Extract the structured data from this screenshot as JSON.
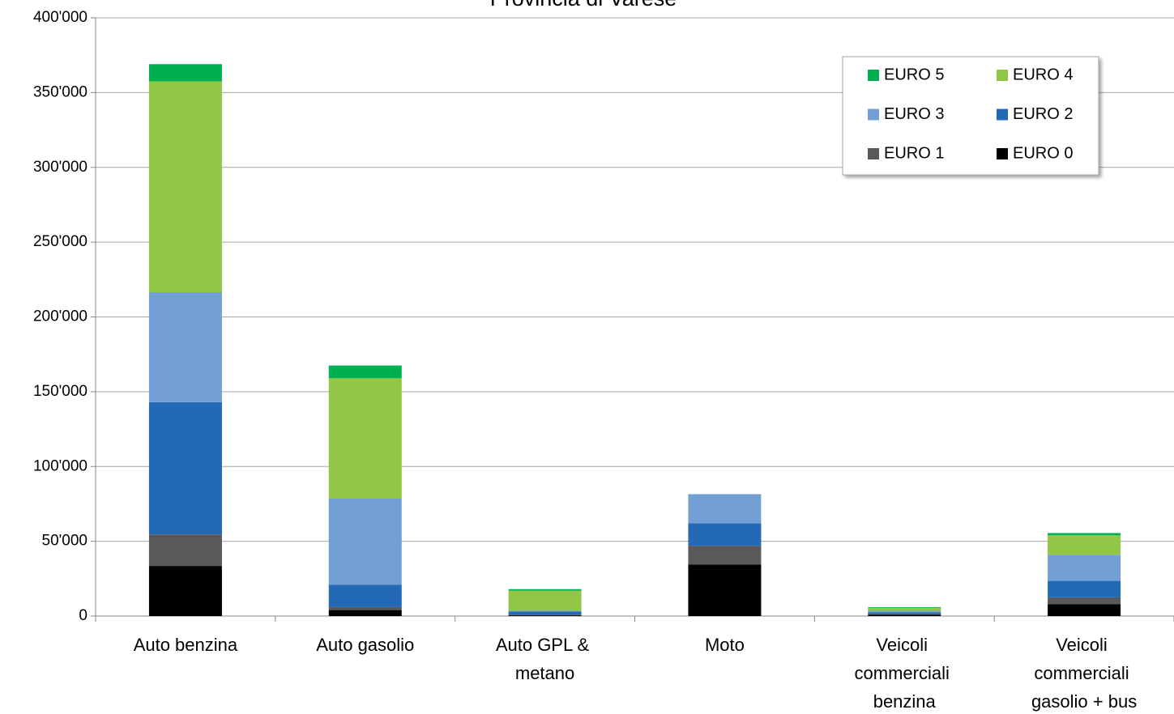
{
  "chart_data": {
    "type": "stacked_bar",
    "title": "Provincia di Varese",
    "categories": [
      "Auto benzina",
      "Auto gasolio",
      "Auto GPL & metano",
      "Moto",
      "Veicoli commerciali benzina",
      "Veicoli commerciali gasolio + bus"
    ],
    "series": [
      {
        "name": "EURO 0",
        "color": "#000000",
        "values": [
          33500,
          4000,
          500,
          34500,
          1000,
          8000
        ]
      },
      {
        "name": "EURO 1",
        "color": "#595959",
        "values": [
          21000,
          2000,
          500,
          12500,
          500,
          4500
        ]
      },
      {
        "name": "EURO 2",
        "color": "#2469b6",
        "values": [
          88500,
          15000,
          2000,
          15000,
          1000,
          11000
        ]
      },
      {
        "name": "EURO 3",
        "color": "#72a0d4",
        "values": [
          73500,
          57500,
          500,
          19500,
          1000,
          17500
        ]
      },
      {
        "name": "EURO 4",
        "color": "#92c647",
        "values": [
          141000,
          80500,
          13500,
          0,
          2000,
          13000
        ]
      },
      {
        "name": "EURO 5",
        "color": "#00b050",
        "values": [
          11500,
          8500,
          1000,
          0,
          500,
          1500
        ]
      }
    ],
    "ylim": [
      0,
      400000
    ],
    "yticks": [
      0,
      {
        "value": 50000,
        "label": "50'000"
      },
      {
        "value": 100000,
        "label": "100'000"
      },
      {
        "value": 150000,
        "label": "150'000"
      },
      {
        "value": 200000,
        "label": "200'000"
      },
      {
        "value": 250000,
        "label": "250'000"
      },
      {
        "value": 300000,
        "label": "300'000"
      },
      {
        "value": 350000,
        "label": "350'000"
      },
      {
        "value": 400000,
        "label": "400'000"
      }
    ],
    "grid": true,
    "legend": "upper right"
  }
}
